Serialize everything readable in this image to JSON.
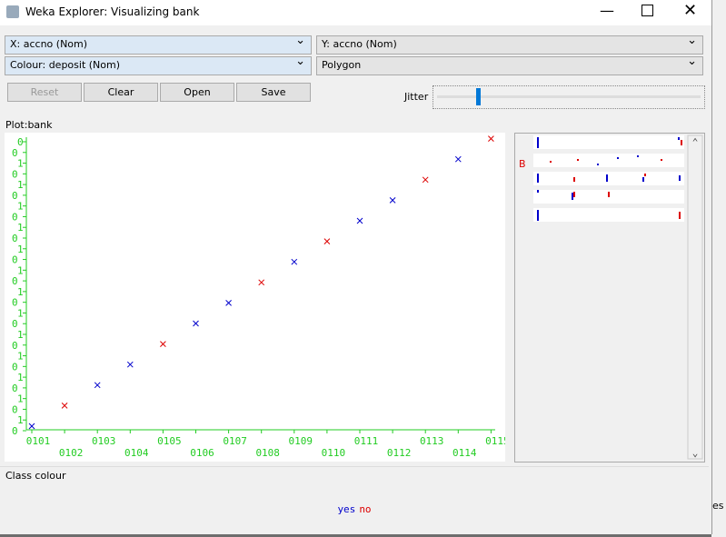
{
  "window": {
    "title": "Weka Explorer: Visualizing bank"
  },
  "controls": {
    "x_axis": "X: accno (Nom)",
    "y_axis": "Y: accno (Nom)",
    "colour": "Colour: deposit (Nom)",
    "shape": "Polygon",
    "buttons": [
      "Reset",
      "Clear",
      "Open",
      "Save"
    ],
    "jitter": "Jitter"
  },
  "plot": {
    "title": "Plot:bank",
    "x_labels": [
      "0101",
      "0102",
      "0103",
      "0104",
      "0105",
      "0106",
      "0107",
      "0108",
      "0109",
      "0110",
      "0111",
      "0112",
      "0113",
      "0114",
      "0115"
    ],
    "y_labels": [
      "0",
      "0",
      "1",
      "0",
      "1",
      "0",
      "1",
      "0",
      "1",
      "0",
      "1",
      "0",
      "1",
      "0",
      "1",
      "0",
      "1",
      "0",
      "1",
      "0",
      "1",
      "0",
      "1",
      "0",
      "1",
      "0",
      "1",
      "0"
    ],
    "points": [
      {
        "x": "0101",
        "y": "0101",
        "class": "yes"
      },
      {
        "x": "0102",
        "y": "0102",
        "class": "no"
      },
      {
        "x": "0103",
        "y": "0103",
        "class": "yes"
      },
      {
        "x": "0104",
        "y": "0104",
        "class": "yes"
      },
      {
        "x": "0105",
        "y": "0105",
        "class": "no"
      },
      {
        "x": "0106",
        "y": "0106",
        "class": "yes"
      },
      {
        "x": "0107",
        "y": "0107",
        "class": "yes"
      },
      {
        "x": "0108",
        "y": "0108",
        "class": "no"
      },
      {
        "x": "0109",
        "y": "0109",
        "class": "yes"
      },
      {
        "x": "0110",
        "y": "0110",
        "class": "no"
      },
      {
        "x": "0111",
        "y": "0111",
        "class": "yes"
      },
      {
        "x": "0112",
        "y": "0112",
        "class": "yes"
      },
      {
        "x": "0113",
        "y": "0113",
        "class": "no"
      },
      {
        "x": "0114",
        "y": "0114",
        "class": "yes"
      },
      {
        "x": "0115",
        "y": "0115",
        "class": "no"
      }
    ],
    "matrix_label": "B"
  },
  "legend": {
    "title": "Class colour",
    "classes": [
      {
        "name": "yes",
        "color": "#0000cc"
      },
      {
        "name": "no",
        "color": "#dd0000"
      }
    ]
  },
  "background": {
    "fragment": "es"
  }
}
